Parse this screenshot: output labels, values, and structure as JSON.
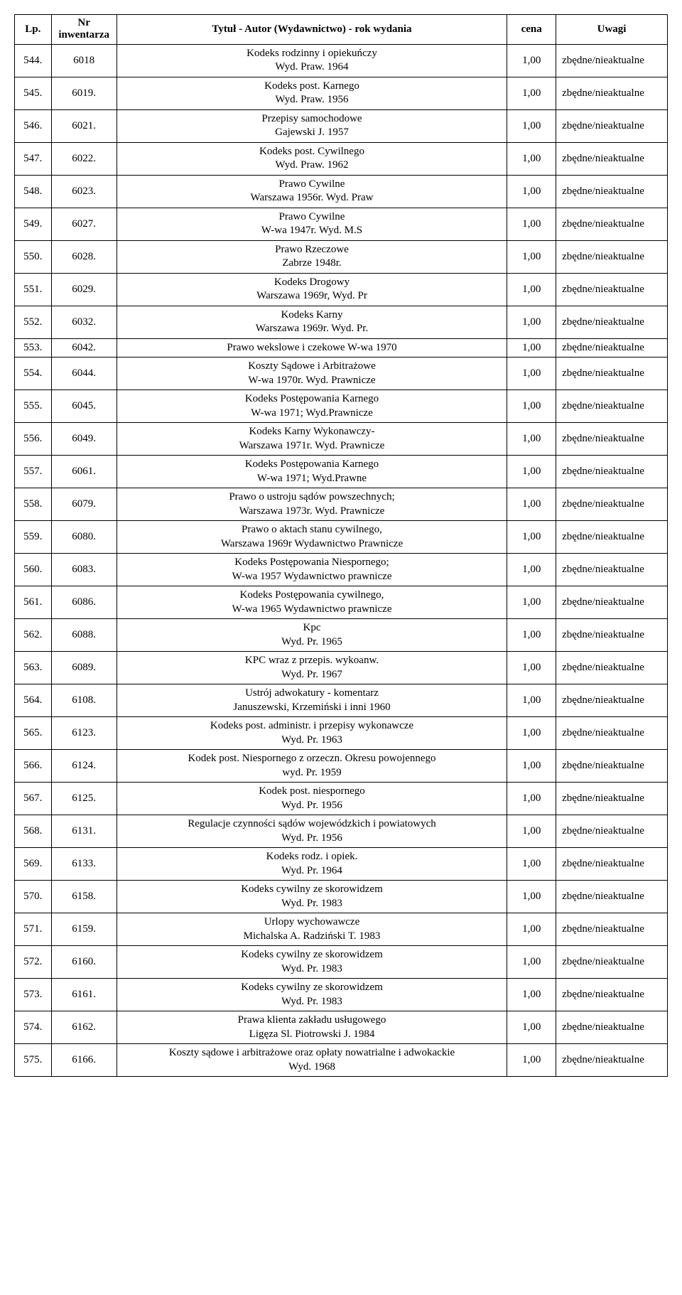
{
  "columns": {
    "lp": "Lp.",
    "inv": "Nr inwentarza",
    "title": "Tytuł - Autor (Wydawnictwo) - rok wydania",
    "price": "cena",
    "notes": "Uwagi"
  },
  "rows": [
    {
      "lp": "544.",
      "inv": "6018",
      "title": "Kodeks rodzinny i opiekuńczy\nWyd. Praw. 1964",
      "price": "1,00",
      "notes": "zbędne/nieaktualne"
    },
    {
      "lp": "545.",
      "inv": "6019.",
      "title": "Kodeks post. Karnego\nWyd. Praw. 1956",
      "price": "1,00",
      "notes": "zbędne/nieaktualne"
    },
    {
      "lp": "546.",
      "inv": "6021.",
      "title": "Przepisy samochodowe\nGajewski J. 1957",
      "price": "1,00",
      "notes": "zbędne/nieaktualne"
    },
    {
      "lp": "547.",
      "inv": "6022.",
      "title": "Kodeks post. Cywilnego\nWyd. Praw. 1962",
      "price": "1,00",
      "notes": "zbędne/nieaktualne"
    },
    {
      "lp": "548.",
      "inv": "6023.",
      "title": "Prawo Cywilne\nWarszawa 1956r. Wyd. Praw",
      "price": "1,00",
      "notes": "zbędne/nieaktualne"
    },
    {
      "lp": "549.",
      "inv": "6027.",
      "title": "Prawo Cywilne\nW-wa 1947r. Wyd. M.S",
      "price": "1,00",
      "notes": "zbędne/nieaktualne"
    },
    {
      "lp": "550.",
      "inv": "6028.",
      "title": "Prawo Rzeczowe\nZabrze 1948r.",
      "price": "1,00",
      "notes": "zbędne/nieaktualne"
    },
    {
      "lp": "551.",
      "inv": "6029.",
      "title": "Kodeks Drogowy\nWarszawa 1969r, Wyd. Pr",
      "price": "1,00",
      "notes": "zbędne/nieaktualne"
    },
    {
      "lp": "552.",
      "inv": "6032.",
      "title": "Kodeks Karny\nWarszawa 1969r. Wyd. Pr.",
      "price": "1,00",
      "notes": "zbędne/nieaktualne"
    },
    {
      "lp": "553.",
      "inv": "6042.",
      "title": "Prawo wekslowe i czekowe W-wa 1970",
      "price": "1,00",
      "notes": "zbędne/nieaktualne"
    },
    {
      "lp": "554.",
      "inv": "6044.",
      "title": "Koszty Sądowe i Arbitrażowe\nW-wa 1970r. Wyd. Prawnicze",
      "price": "1,00",
      "notes": "zbędne/nieaktualne"
    },
    {
      "lp": "555.",
      "inv": "6045.",
      "title": "Kodeks Postępowania Karnego\nW-wa 1971; Wyd.Prawnicze",
      "price": "1,00",
      "notes": "zbędne/nieaktualne"
    },
    {
      "lp": "556.",
      "inv": "6049.",
      "title": "Kodeks Karny Wykonawczy-\nWarszawa 1971r. Wyd. Prawnicze",
      "price": "1,00",
      "notes": "zbędne/nieaktualne"
    },
    {
      "lp": "557.",
      "inv": "6061.",
      "title": "Kodeks Postępowania Karnego\nW-wa 1971; Wyd.Prawne",
      "price": "1,00",
      "notes": "zbędne/nieaktualne"
    },
    {
      "lp": "558.",
      "inv": "6079.",
      "title": "Prawo o ustroju sądów powszechnych;\nWarszawa 1973r. Wyd. Prawnicze",
      "price": "1,00",
      "notes": "zbędne/nieaktualne"
    },
    {
      "lp": "559.",
      "inv": "6080.",
      "title": "Prawo o aktach stanu cywilnego,\nWarszawa 1969r Wydawnictwo Prawnicze",
      "price": "1,00",
      "notes": "zbędne/nieaktualne"
    },
    {
      "lp": "560.",
      "inv": "6083.",
      "title": "Kodeks Postępowania Niespornego;\nW-wa 1957 Wydawnictwo prawnicze",
      "price": "1,00",
      "notes": "zbędne/nieaktualne"
    },
    {
      "lp": "561.",
      "inv": "6086.",
      "title": "Kodeks Postępowania cywilnego,\nW-wa 1965 Wydawnictwo prawnicze",
      "price": "1,00",
      "notes": "zbędne/nieaktualne"
    },
    {
      "lp": "562.",
      "inv": "6088.",
      "title": "Kpc\nWyd. Pr. 1965",
      "price": "1,00",
      "notes": "zbędne/nieaktualne"
    },
    {
      "lp": "563.",
      "inv": "6089.",
      "title": "KPC wraz z przepis. wykoanw.\nWyd. Pr. 1967",
      "price": "1,00",
      "notes": "zbędne/nieaktualne"
    },
    {
      "lp": "564.",
      "inv": "6108.",
      "title": "Ustrój adwokatury - komentarz\nJanuszewski, Krzemiński  i inni 1960",
      "price": "1,00",
      "notes": "zbędne/nieaktualne"
    },
    {
      "lp": "565.",
      "inv": "6123.",
      "title": "Kodeks post. administr. i przepisy wykonawcze\nWyd. Pr. 1963",
      "price": "1,00",
      "notes": "zbędne/nieaktualne"
    },
    {
      "lp": "566.",
      "inv": "6124.",
      "title": "Kodek post. Niespornego z orzeczn. Okresu powojennego\nwyd. Pr. 1959",
      "price": "1,00",
      "notes": "zbędne/nieaktualne"
    },
    {
      "lp": "567.",
      "inv": "6125.",
      "title": "Kodek post. niespornego\nWyd. Pr. 1956",
      "price": "1,00",
      "notes": "zbędne/nieaktualne"
    },
    {
      "lp": "568.",
      "inv": "6131.",
      "title": "Regulacje czynności sądów wojewódzkich i powiatowych\nWyd. Pr. 1956",
      "price": "1,00",
      "notes": "zbędne/nieaktualne"
    },
    {
      "lp": "569.",
      "inv": "6133.",
      "title": "Kodeks rodz. i opiek.\nWyd. Pr. 1964",
      "price": "1,00",
      "notes": "zbędne/nieaktualne"
    },
    {
      "lp": "570.",
      "inv": "6158.",
      "title": "Kodeks cywilny ze skorowidzem\nWyd. Pr. 1983",
      "price": "1,00",
      "notes": "zbędne/nieaktualne"
    },
    {
      "lp": "571.",
      "inv": "6159.",
      "title": "Urlopy wychowawcze\nMichalska A. Radziński T. 1983",
      "price": "1,00",
      "notes": "zbędne/nieaktualne"
    },
    {
      "lp": "572.",
      "inv": "6160.",
      "title": "Kodeks cywilny ze skorowidzem\nWyd. Pr. 1983",
      "price": "1,00",
      "notes": "zbędne/nieaktualne"
    },
    {
      "lp": "573.",
      "inv": "6161.",
      "title": "Kodeks cywilny ze skorowidzem\nWyd. Pr. 1983",
      "price": "1,00",
      "notes": "zbędne/nieaktualne"
    },
    {
      "lp": "574.",
      "inv": "6162.",
      "title": "Prawa klienta zakładu usługowego\nLigęza Sl. Piotrowski J. 1984",
      "price": "1,00",
      "notes": "zbędne/nieaktualne"
    },
    {
      "lp": "575.",
      "inv": "6166.",
      "title": "Koszty sądowe i arbitrażowe oraz opłaty nowatrialne i adwokackie\nWyd. 1968",
      "price": "1,00",
      "notes": "zbędne/nieaktualne"
    }
  ]
}
